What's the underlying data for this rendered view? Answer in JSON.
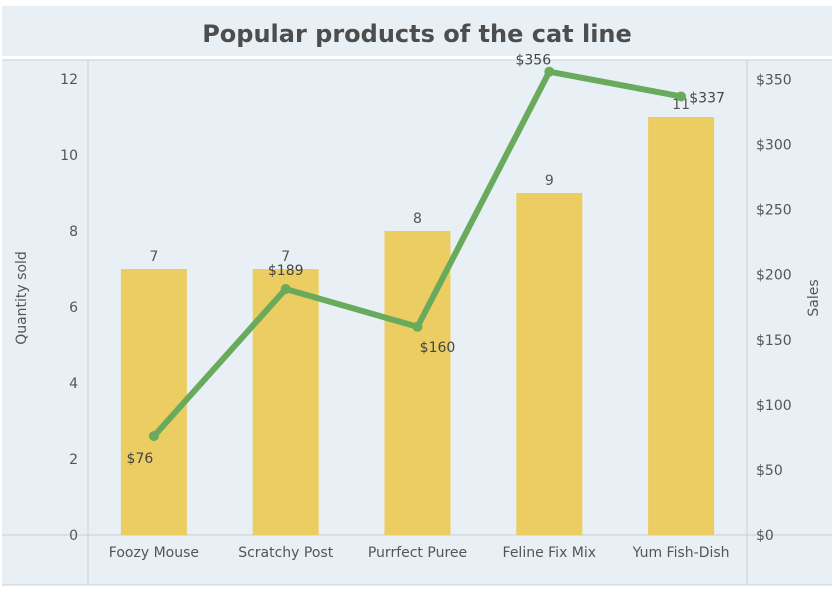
{
  "chart_data": {
    "type": "bar",
    "title": "Popular products of the cat line",
    "categories": [
      "Foozy Mouse",
      "Scratchy Post",
      "Purrfect Puree",
      "Feline Fix Mix",
      "Yum Fish-Dish"
    ],
    "series": [
      {
        "name": "Quantity sold",
        "type": "bar",
        "axis": "left",
        "values": [
          7,
          7,
          8,
          9,
          11
        ],
        "labels": [
          "7",
          "7",
          "8",
          "9",
          "11"
        ]
      },
      {
        "name": "Sales",
        "type": "line",
        "axis": "right",
        "values": [
          76,
          189,
          160,
          356,
          337
        ],
        "labels": [
          "$76",
          "$189",
          "$160",
          "$356",
          "$337"
        ]
      }
    ],
    "y_left": {
      "label": "Quantity sold",
      "range": [
        0,
        12.5
      ],
      "ticks": [
        0,
        2,
        4,
        6,
        8,
        10,
        12
      ],
      "tick_labels": [
        "0",
        "2",
        "4",
        "6",
        "8",
        "10",
        "12"
      ]
    },
    "y_right": {
      "label": "Sales",
      "range": [
        0,
        365
      ],
      "ticks": [
        0,
        50,
        100,
        150,
        200,
        250,
        300,
        350
      ],
      "tick_labels": [
        "$0",
        "$50",
        "$100",
        "$150",
        "$200",
        "$250",
        "$300",
        "$350"
      ]
    },
    "grid": false,
    "legend": "none",
    "colors": {
      "bar": "#ebcd62",
      "line": "#6aaa5c",
      "panel_bg": "#e8f0f5",
      "title_bg": "#e8f0f5",
      "text": "#555555",
      "title_text": "#4d4d4d",
      "frame": "#c9d0d6"
    }
  }
}
